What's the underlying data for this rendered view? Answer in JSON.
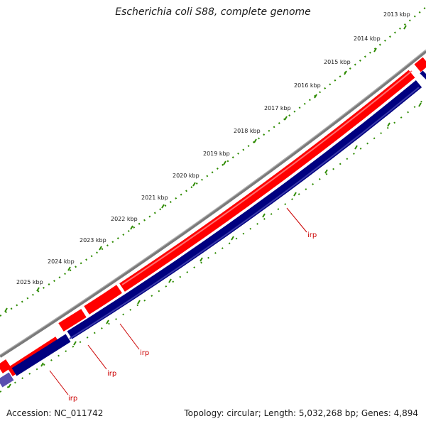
{
  "title": "Escherichia coli S88, complete genome",
  "footer": {
    "accession": "Accession: NC_011742",
    "summary": "Topology: circular; Length: 5,032,268 bp; Genes: 4,894"
  },
  "ruler": {
    "unit": "kbp",
    "labels": [
      "2013 kbp",
      "2014 kbp",
      "2015 kbp",
      "2016 kbp",
      "2017 kbp",
      "2018 kbp",
      "2019 kbp",
      "2020 kbp",
      "2021 kbp",
      "2022 kbp",
      "2023 kbp",
      "2024 kbp",
      "2025 kbp"
    ]
  },
  "feature_labels": [
    "irp",
    "irp",
    "irp",
    "irp"
  ],
  "tracks": [
    {
      "name": "backbone",
      "color": "#808080"
    },
    {
      "name": "forward-strand-features",
      "color": "#ff0000"
    },
    {
      "name": "reverse-strand-features",
      "color": "#000080"
    },
    {
      "name": "gc-ticks",
      "color": "#008000"
    }
  ],
  "colors": {
    "backbone": "#808080",
    "forward": "#ff0000",
    "reverse": "#000080",
    "reverse_light": "#5a4fb0",
    "ticks": "#2e8b00",
    "label": "#cc0000"
  }
}
